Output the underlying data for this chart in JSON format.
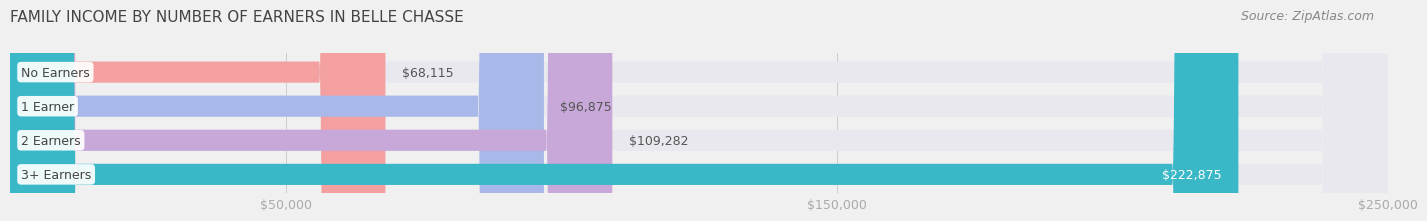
{
  "title": "FAMILY INCOME BY NUMBER OF EARNERS IN BELLE CHASSE",
  "source": "Source: ZipAtlas.com",
  "categories": [
    "No Earners",
    "1 Earner",
    "2 Earners",
    "3+ Earners"
  ],
  "values": [
    68115,
    96875,
    109282,
    222875
  ],
  "bar_colors": [
    "#f4a0a0",
    "#a8b8e8",
    "#c8a8d8",
    "#3ab8c8"
  ],
  "label_colors": [
    "#555555",
    "#555555",
    "#555555",
    "#ffffff"
  ],
  "bg_color": "#f0f0f0",
  "bar_bg_color": "#e8e8ee",
  "xlim": [
    0,
    250000
  ],
  "xticks": [
    50000,
    150000,
    250000
  ],
  "xtick_labels": [
    "$50,000",
    "$150,000",
    "$250,000"
  ],
  "bar_height": 0.62,
  "label_fontsize": 9,
  "title_fontsize": 11,
  "source_fontsize": 9,
  "cat_fontsize": 9
}
